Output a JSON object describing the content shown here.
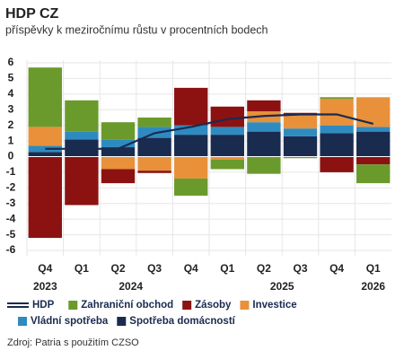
{
  "chart_data": {
    "type": "bar",
    "stacked": true,
    "title": "HDP CZ",
    "subtitle": "příspěvky k meziročnímu růstu v procentních bodech",
    "source": "Zdroj: Patria s použitím CZSO",
    "categories": [
      "Q4",
      "Q1",
      "Q2",
      "Q3",
      "Q4",
      "Q1",
      "Q2",
      "Q3",
      "Q4",
      "Q1"
    ],
    "years": [
      "2023",
      null,
      "2024",
      null,
      null,
      null,
      "2025",
      null,
      null,
      "2026"
    ],
    "ylim": [
      -6,
      6
    ],
    "yticks": [
      -6,
      -5,
      -4,
      -3,
      -2,
      -1,
      0,
      1,
      2,
      3,
      4,
      5,
      6
    ],
    "grid": true,
    "series": [
      {
        "name": "HDP",
        "type": "line",
        "color": "#1a2b50",
        "values": [
          0.5,
          0.5,
          0.5,
          1.5,
          1.9,
          2.4,
          2.6,
          2.7,
          2.7,
          2.1
        ]
      },
      {
        "name": "Zahraniční obchod",
        "type": "bar",
        "color": "#6b9a2c",
        "values": [
          3.8,
          2.0,
          1.1,
          0.6,
          -1.1,
          -0.6,
          -1.1,
          -0.1,
          0.1,
          -1.2
        ]
      },
      {
        "name": "Zásoby",
        "type": "bar",
        "color": "#8c1212",
        "values": [
          -5.2,
          -3.1,
          -0.9,
          -0.15,
          2.4,
          1.3,
          0.7,
          0.1,
          -1.0,
          -0.5
        ]
      },
      {
        "name": "Investice",
        "type": "bar",
        "color": "#e8913a",
        "values": [
          1.2,
          0,
          -0.8,
          -0.9,
          -1.4,
          -0.2,
          0.7,
          0.9,
          1.7,
          1.9
        ]
      },
      {
        "name": "Vládní spotřeba",
        "type": "bar",
        "color": "#2f8bbf",
        "values": [
          0.4,
          0.5,
          0.5,
          0.7,
          0.6,
          0.5,
          0.6,
          0.5,
          0.5,
          0.3
        ]
      },
      {
        "name": "Spotřeba domácností",
        "type": "bar",
        "color": "#1a2b50",
        "values": [
          0.3,
          1.1,
          0.6,
          1.2,
          1.4,
          1.4,
          1.6,
          1.3,
          1.5,
          1.6
        ]
      }
    ]
  }
}
